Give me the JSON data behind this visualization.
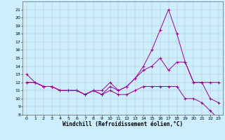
{
  "xlabel": "Windchill (Refroidissement éolien,°C)",
  "bg_color": "#cceeff",
  "grid_color": "#bbbbbb",
  "line_color": "#990099",
  "x": [
    0,
    1,
    2,
    3,
    4,
    5,
    6,
    7,
    8,
    9,
    10,
    11,
    12,
    13,
    14,
    15,
    16,
    17,
    18,
    19,
    20,
    21,
    22,
    23
  ],
  "line1": [
    13,
    12,
    11.5,
    11.5,
    11,
    11,
    11,
    10.5,
    11,
    10.5,
    11.5,
    11,
    11.5,
    12.5,
    14,
    16,
    18.5,
    21,
    18,
    14.5,
    12,
    12,
    10,
    9.5
  ],
  "line2": [
    12,
    12,
    11.5,
    11.5,
    11,
    11,
    11,
    10.5,
    11,
    11,
    12,
    11,
    11.5,
    12.5,
    13.5,
    14,
    15,
    13.5,
    14.5,
    14.5,
    12,
    12,
    12,
    12
  ],
  "line3": [
    12,
    12,
    11.5,
    11.5,
    11,
    11,
    11,
    10.5,
    11,
    10.5,
    11,
    10.5,
    10.5,
    11,
    11.5,
    11.5,
    11.5,
    11.5,
    11.5,
    10,
    10,
    9.5,
    8.5,
    7.5
  ],
  "ylim": [
    8,
    22
  ],
  "xlim": [
    -0.5,
    23.5
  ],
  "yticks": [
    8,
    9,
    10,
    11,
    12,
    13,
    14,
    15,
    16,
    17,
    18,
    19,
    20,
    21
  ],
  "xticks": [
    0,
    1,
    2,
    3,
    4,
    5,
    6,
    7,
    8,
    9,
    10,
    11,
    12,
    13,
    14,
    15,
    16,
    17,
    18,
    19,
    20,
    21,
    22,
    23
  ],
  "tick_fontsize": 4.5,
  "label_fontsize": 5.5
}
